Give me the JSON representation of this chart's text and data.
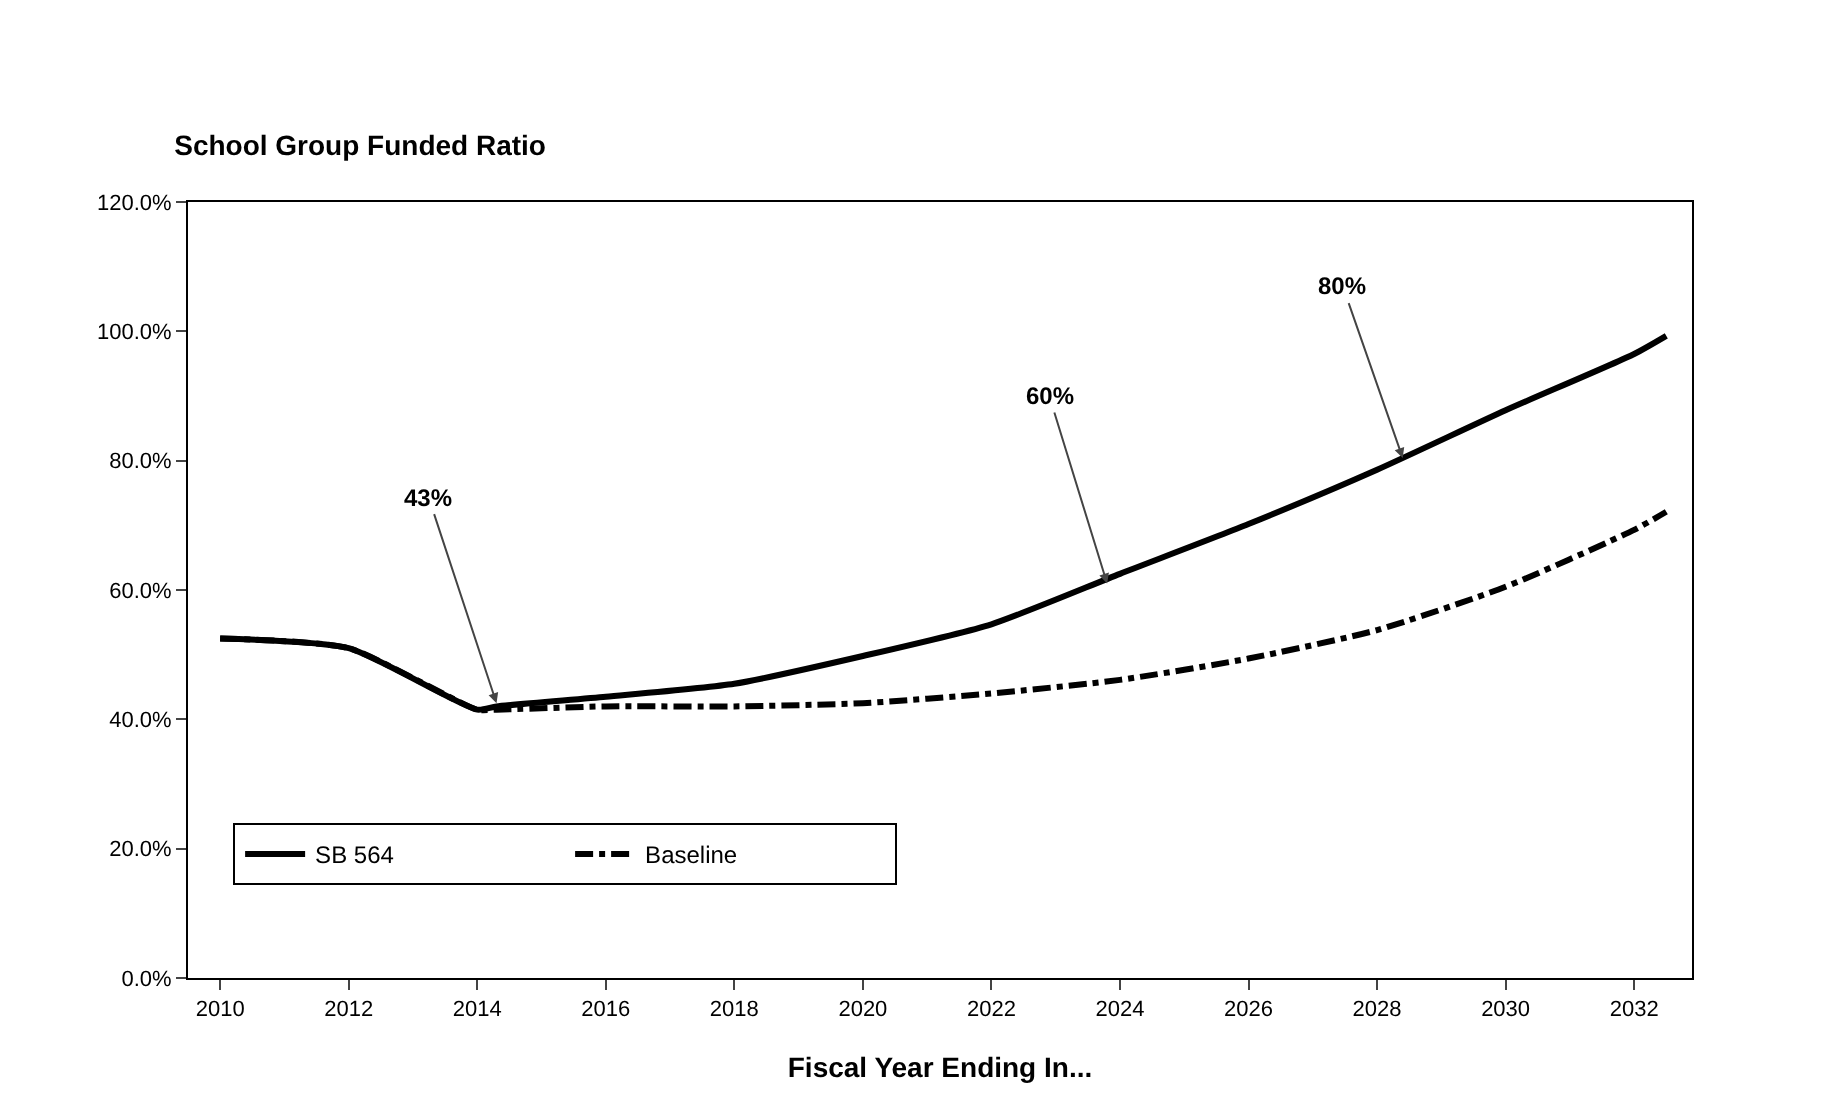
{
  "chart_data": {
    "type": "line",
    "title": "School Group Funded Ratio",
    "xlabel": "Fiscal Year Ending In...",
    "x": [
      2010,
      2012,
      2014,
      2014.3,
      2016,
      2018,
      2020,
      2022,
      2024,
      2026,
      2028,
      2030,
      2032,
      2032.5
    ],
    "series": [
      {
        "name": "SB 564",
        "color": "#000000",
        "line_style": "solid",
        "values": [
          52.5,
          51,
          41.5,
          42,
          43.5,
          45.5,
          49.8,
          54.7,
          62.5,
          70.2,
          78.6,
          87.8,
          96.5,
          99.3
        ]
      },
      {
        "name": "Baseline",
        "color": "#000000",
        "line_style": "dashed",
        "values": [
          52.5,
          51,
          41.5,
          41.5,
          42,
          42,
          42.5,
          44,
          46.1,
          49.4,
          53.8,
          60.5,
          69.3,
          72.1
        ]
      }
    ],
    "xlim": [
      2009.5,
      2032.9
    ],
    "xticks": [
      2010,
      2012,
      2014,
      2016,
      2018,
      2020,
      2022,
      2024,
      2026,
      2028,
      2030,
      2032
    ],
    "ylim": [
      0,
      120
    ],
    "yticks": [
      {
        "value": 0,
        "label": "0.0%"
      },
      {
        "value": 20,
        "label": "20.0%"
      },
      {
        "value": 40,
        "label": "40.0%"
      },
      {
        "value": 60,
        "label": "60.0%"
      },
      {
        "value": 80,
        "label": "80.0%"
      },
      {
        "value": 100,
        "label": "100.0%"
      },
      {
        "value": 120,
        "label": "120.0%"
      }
    ],
    "annotations": [
      {
        "text": "43%",
        "x": 2014.3,
        "y": 42.5
      },
      {
        "text": "60%",
        "x": 2023.8,
        "y": 61
      },
      {
        "text": "80%",
        "x": 2028.4,
        "y": 80.4
      }
    ],
    "grid": false,
    "legend": "bottom left",
    "marker": "none"
  }
}
